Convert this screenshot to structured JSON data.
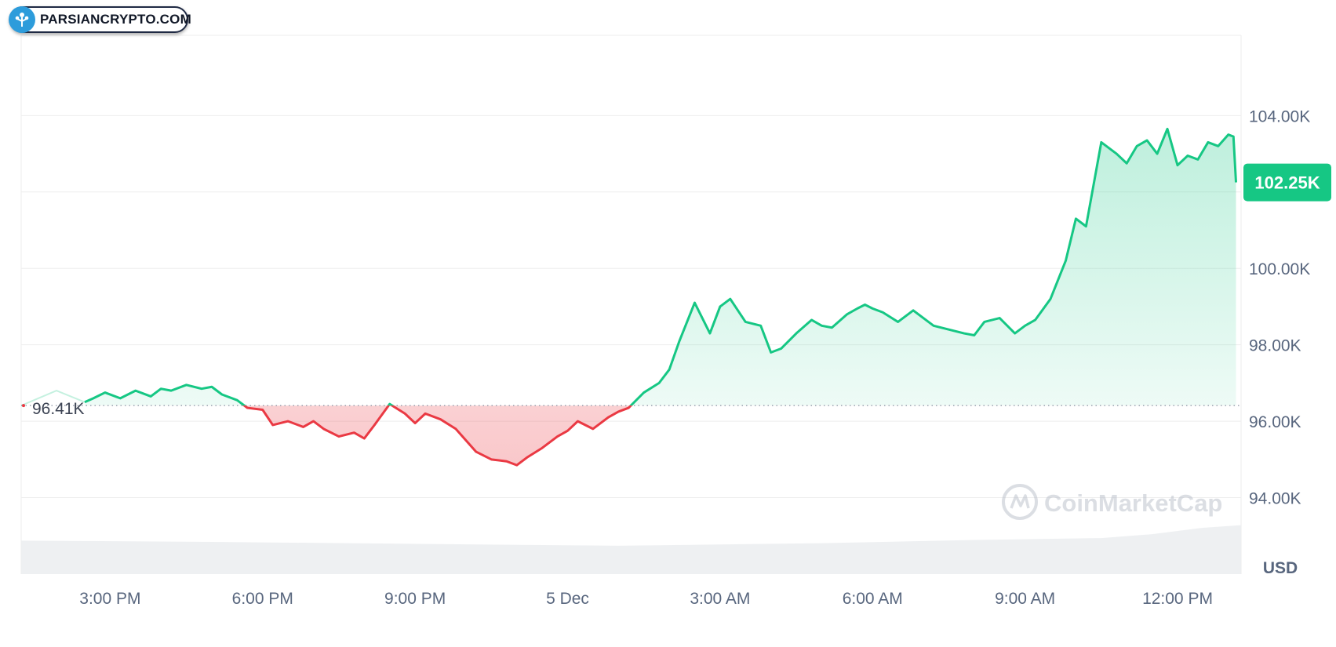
{
  "badge": {
    "text": "PARSIANCRYPTO.COM",
    "accent": "#2d9cdb",
    "icon": "crypto-tree-icon"
  },
  "watermark": {
    "text": "CoinMarketCap",
    "icon": "coinmarketcap-logo-icon"
  },
  "colors": {
    "up": "#16c784",
    "down": "#ea3943",
    "grid": "#eeeeee",
    "tick_text": "#58667e"
  },
  "chart_data": {
    "type": "line",
    "title": "",
    "xlabel": "",
    "ylabel": "USD",
    "unit_label": "USD",
    "x_ticks": [
      "3:00 PM",
      "6:00 PM",
      "9:00 PM",
      "5 Dec",
      "3:00 AM",
      "6:00 AM",
      "9:00 AM",
      "12:00 PM"
    ],
    "y_ticks": [
      94000,
      96000,
      98000,
      100000,
      104000
    ],
    "y_tick_labels": [
      "94.00K",
      "96.00K",
      "98.00K",
      "100.00K",
      "104.00K"
    ],
    "ylim": [
      92000,
      106100
    ],
    "xlim_hours": [
      13.25,
      37.25
    ],
    "grid": true,
    "baseline": {
      "value": 96410,
      "label": "96.41K"
    },
    "current": {
      "value": 102250,
      "label": "102.25K"
    },
    "series": [
      {
        "x_hours": [
          14.5,
          14.67,
          14.9,
          15.2,
          15.5,
          15.8,
          16.0,
          16.2,
          16.5,
          16.8,
          17.0,
          17.2,
          17.5,
          17.7,
          18.0,
          18.2,
          18.5,
          18.8,
          19.0,
          19.2,
          19.5,
          19.8,
          20.0,
          20.2,
          20.5,
          20.8,
          21.0,
          21.2,
          21.5,
          21.8,
          22.0,
          22.2,
          22.5,
          22.8,
          23.0,
          23.2,
          23.5,
          23.8,
          24.0,
          24.2,
          24.5,
          24.8,
          25.0,
          25.2,
          25.5,
          25.8,
          26.0,
          26.2,
          26.5,
          26.8,
          27.0,
          27.2,
          27.5,
          27.8,
          28.0,
          28.2,
          28.5,
          28.8,
          29.0,
          29.2,
          29.5,
          29.7,
          29.85,
          30.0,
          30.2,
          30.5,
          30.8,
          31.0,
          31.2,
          31.5,
          31.8,
          32.0,
          32.2,
          32.5,
          32.8,
          33.0,
          33.2,
          33.5,
          33.8,
          34.0,
          34.2,
          34.5,
          34.8,
          35.0,
          35.2,
          35.4,
          35.6,
          35.8,
          36.0,
          36.2,
          36.4,
          36.6,
          36.8,
          37.0,
          37.1,
          37.15
        ],
        "y": [
          96500,
          96600,
          96750,
          96600,
          96800,
          96650,
          96850,
          96800,
          96950,
          96850,
          96900,
          96700,
          96550,
          96350,
          96300,
          95900,
          96000,
          95850,
          96000,
          95800,
          95600,
          95700,
          95550,
          95900,
          96450,
          96200,
          95950,
          96200,
          96050,
          95800,
          95500,
          95200,
          95000,
          94950,
          94850,
          95050,
          95300,
          95600,
          95750,
          96000,
          95800,
          96100,
          96250,
          96350,
          96750,
          97000,
          97350,
          98100,
          99100,
          98300,
          99000,
          99200,
          98600,
          98500,
          97800,
          97900,
          98300,
          98650,
          98500,
          98450,
          98800,
          98950,
          99050,
          98950,
          98850,
          98600,
          98900,
          98700,
          98500,
          98400,
          98300,
          98250,
          98600,
          98700,
          98300,
          98500,
          98650,
          99200,
          100200,
          101300,
          101100,
          103300,
          103000,
          102750,
          103200,
          103350,
          103000,
          103650,
          102700,
          102950,
          102850,
          103300,
          103200,
          103500,
          103450,
          102250
        ]
      }
    ],
    "volume": {
      "x_hours": [
        13.25,
        17.0,
        21.0,
        25.0,
        29.0,
        32.0,
        34.5,
        35.5,
        36.5,
        37.25
      ],
      "relative": [
        0.52,
        0.5,
        0.47,
        0.44,
        0.48,
        0.53,
        0.56,
        0.62,
        0.72,
        0.76
      ]
    }
  }
}
